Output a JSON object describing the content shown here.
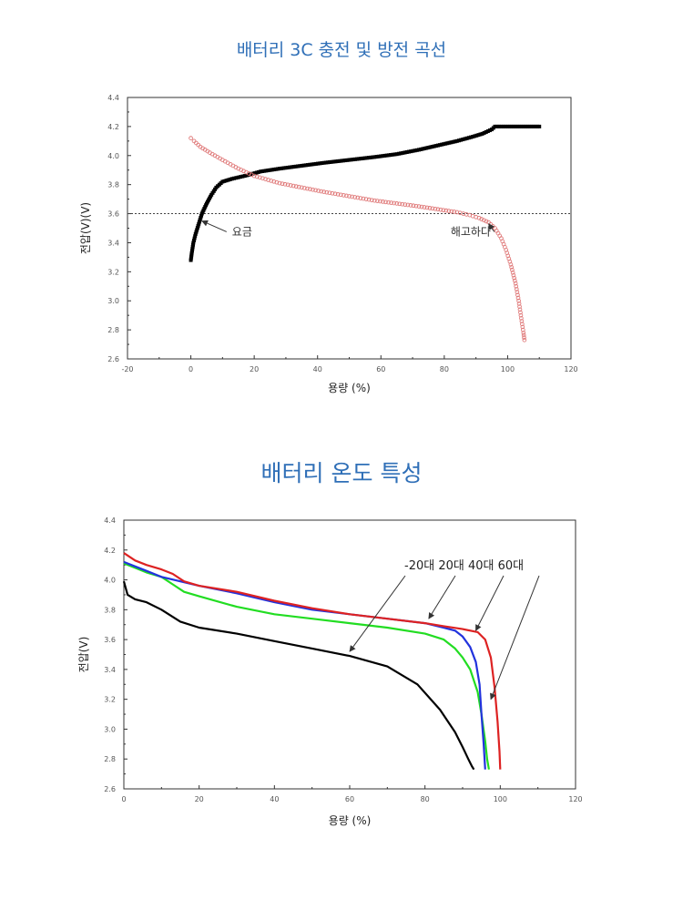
{
  "titles": {
    "chart1": "배터리 3C 충전 및 방전 곡선",
    "chart2": "배터리 온도 특성"
  },
  "chart_data": [
    {
      "type": "scatter",
      "title": "배터리 3C 충전 및 방전 곡선",
      "xlabel": "용량 (%)",
      "ylabel": "전압(V)(V)",
      "xlim": [
        -20,
        120
      ],
      "ylim": [
        2.6,
        4.4
      ],
      "xticks": [
        "-20",
        "0",
        "20",
        "40",
        "60",
        "80",
        "100",
        "120"
      ],
      "yticks": [
        "2.6",
        "2.8",
        "3.0",
        "3.2",
        "3.4",
        "3.6",
        "3.8",
        "4.0",
        "4.2",
        "4.4"
      ],
      "reference_line": {
        "y": 3.6,
        "style": "dotted"
      },
      "series": [
        {
          "color": "#000000",
          "marker": "filled-square",
          "points": [
            [
              0,
              3.28
            ],
            [
              0.3,
              3.33
            ],
            [
              0.8,
              3.4
            ],
            [
              1.5,
              3.46
            ],
            [
              2.5,
              3.53
            ],
            [
              3.5,
              3.6
            ],
            [
              5,
              3.67
            ],
            [
              6.5,
              3.73
            ],
            [
              8,
              3.78
            ],
            [
              10,
              3.82
            ],
            [
              13,
              3.84
            ],
            [
              17,
              3.86
            ],
            [
              22,
              3.89
            ],
            [
              28,
              3.91
            ],
            [
              35,
              3.93
            ],
            [
              42,
              3.95
            ],
            [
              50,
              3.97
            ],
            [
              58,
              3.99
            ],
            [
              65,
              4.01
            ],
            [
              72,
              4.04
            ],
            [
              78,
              4.07
            ],
            [
              84,
              4.1
            ],
            [
              89,
              4.13
            ],
            [
              92,
              4.15
            ],
            [
              95,
              4.18
            ],
            [
              96,
              4.2
            ],
            [
              100,
              4.2
            ],
            [
              105,
              4.2
            ],
            [
              110,
              4.2
            ]
          ]
        },
        {
          "color": "#e07b7b",
          "marker": "open-circle",
          "points": [
            [
              0,
              4.12
            ],
            [
              1,
              4.1
            ],
            [
              3,
              4.06
            ],
            [
              6,
              4.02
            ],
            [
              10,
              3.97
            ],
            [
              15,
              3.91
            ],
            [
              20,
              3.86
            ],
            [
              28,
              3.81
            ],
            [
              35,
              3.78
            ],
            [
              42,
              3.75
            ],
            [
              50,
              3.72
            ],
            [
              58,
              3.69
            ],
            [
              65,
              3.67
            ],
            [
              72,
              3.65
            ],
            [
              78,
              3.63
            ],
            [
              84,
              3.61
            ],
            [
              88,
              3.59
            ],
            [
              91,
              3.57
            ],
            [
              94,
              3.54
            ],
            [
              96,
              3.5
            ],
            [
              98,
              3.43
            ],
            [
              99.5,
              3.35
            ],
            [
              101,
              3.25
            ],
            [
              102.5,
              3.12
            ],
            [
              103.5,
              3.0
            ],
            [
              104.3,
              2.88
            ],
            [
              105,
              2.78
            ],
            [
              105.3,
              2.73
            ]
          ]
        }
      ],
      "annotations": [
        {
          "text": "요금",
          "x": 13,
          "y": 3.45,
          "arrow_to": [
            3.5,
            3.55
          ]
        },
        {
          "text": "해고하다",
          "x": 82,
          "y": 3.45,
          "arrow_to": [
            94,
            3.53
          ]
        }
      ]
    },
    {
      "type": "line",
      "title": "배터리 온도 특성",
      "xlabel": "용량 (%)",
      "ylabel": "전압(V)",
      "xlim": [
        0,
        120
      ],
      "ylim": [
        2.6,
        4.4
      ],
      "xticks": [
        "0",
        "20",
        "40",
        "60",
        "80",
        "100",
        "120"
      ],
      "yticks": [
        "2.6",
        "2.8",
        "3.0",
        "3.2",
        "3.4",
        "3.6",
        "3.8",
        "4.0",
        "4.2",
        "4.4"
      ],
      "legend_text": "-20대 20대 40대 60대",
      "series": [
        {
          "color": "#000000",
          "x": [
            0,
            1,
            3,
            6,
            10,
            15,
            20,
            30,
            40,
            50,
            60,
            70,
            78,
            84,
            88,
            90,
            91.5,
            92.5,
            93
          ],
          "y": [
            3.99,
            3.9,
            3.87,
            3.85,
            3.8,
            3.72,
            3.68,
            3.64,
            3.59,
            3.54,
            3.49,
            3.42,
            3.3,
            3.13,
            2.98,
            2.88,
            2.8,
            2.75,
            2.73
          ]
        },
        {
          "color": "#22dd22",
          "x": [
            0,
            3,
            6,
            10,
            13,
            16,
            20,
            30,
            40,
            50,
            60,
            70,
            80,
            85,
            88,
            90,
            92,
            94,
            95,
            96,
            96.5,
            97
          ],
          "y": [
            4.11,
            4.08,
            4.05,
            4.02,
            3.97,
            3.92,
            3.89,
            3.82,
            3.77,
            3.74,
            3.71,
            3.68,
            3.64,
            3.6,
            3.54,
            3.48,
            3.4,
            3.25,
            3.1,
            2.92,
            2.8,
            2.73
          ]
        },
        {
          "color": "#2233dd",
          "x": [
            0,
            3,
            6,
            10,
            15,
            20,
            30,
            40,
            50,
            60,
            70,
            80,
            85,
            88,
            90,
            92,
            93.5,
            94.5,
            95,
            95.6,
            96
          ],
          "y": [
            4.12,
            4.09,
            4.06,
            4.02,
            3.99,
            3.96,
            3.91,
            3.85,
            3.8,
            3.77,
            3.74,
            3.71,
            3.68,
            3.66,
            3.62,
            3.55,
            3.45,
            3.3,
            3.1,
            2.9,
            2.73
          ]
        },
        {
          "color": "#dd2222",
          "x": [
            0,
            3,
            6,
            10,
            13,
            16,
            20,
            30,
            40,
            50,
            60,
            70,
            80,
            85,
            90,
            94,
            96,
            97.5,
            98.5,
            99.3,
            99.8,
            100
          ],
          "y": [
            4.18,
            4.13,
            4.1,
            4.07,
            4.04,
            3.99,
            3.96,
            3.92,
            3.86,
            3.81,
            3.77,
            3.74,
            3.71,
            3.69,
            3.67,
            3.65,
            3.6,
            3.48,
            3.28,
            3.05,
            2.85,
            2.73
          ]
        }
      ],
      "annotations": [
        {
          "x": 60,
          "y": 3.52,
          "from": [
            74,
            4.0
          ]
        },
        {
          "x": 81,
          "y": 3.74,
          "from": [
            91,
            4.0
          ]
        },
        {
          "x": 93.5,
          "y": 3.66,
          "from": [
            105,
            4.0
          ]
        },
        {
          "x": 97.5,
          "y": 3.2,
          "from": [
            110,
            4.0
          ]
        }
      ]
    }
  ]
}
